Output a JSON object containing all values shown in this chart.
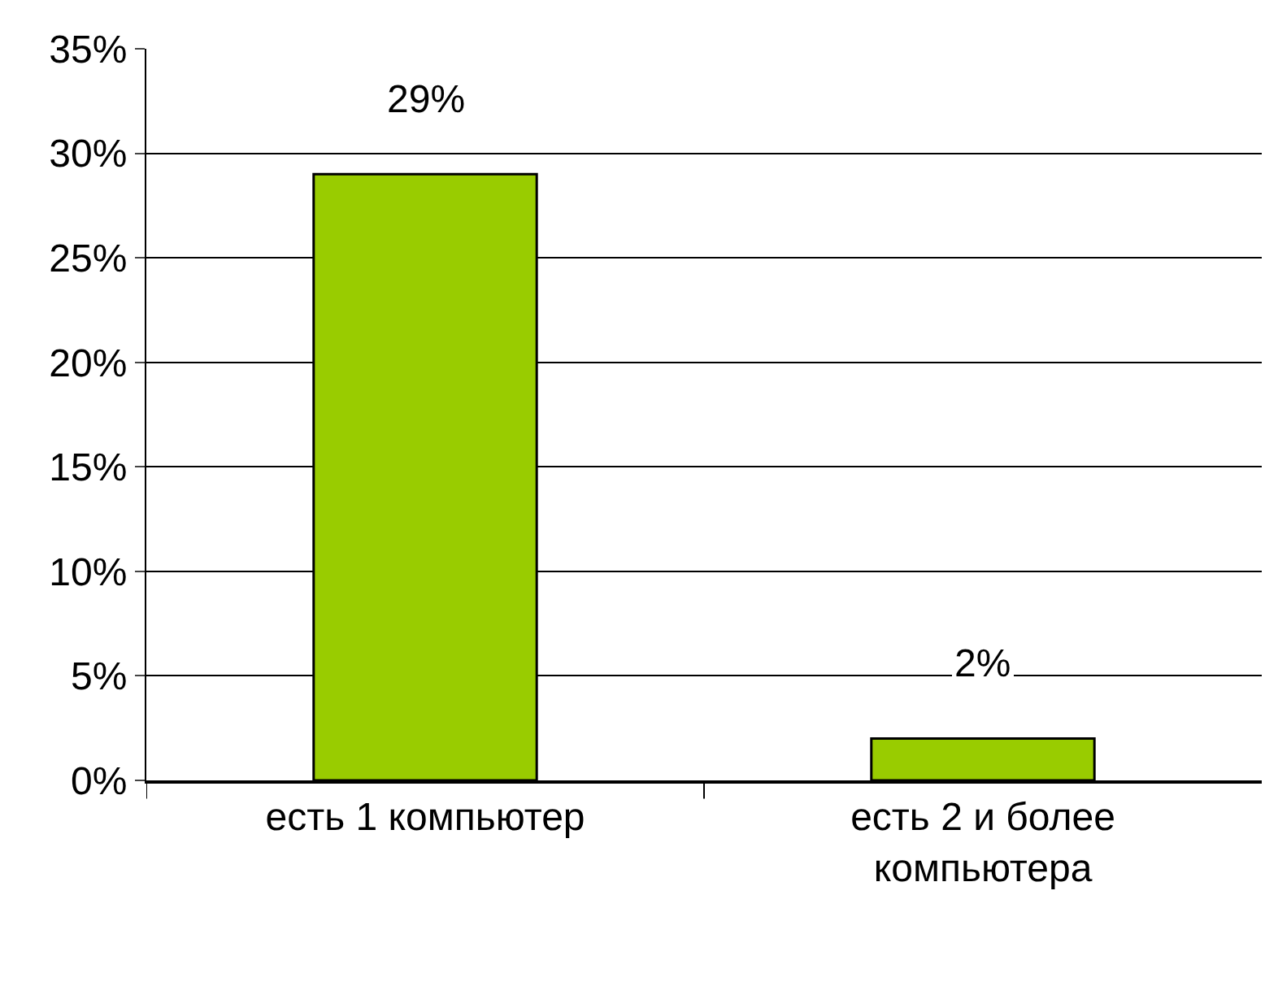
{
  "chart_data": {
    "type": "bar",
    "categories": [
      "есть 1 компьютер",
      "есть 2 и более компьютера"
    ],
    "values": [
      29,
      2
    ],
    "color": "#99cc00",
    "value_labels": [
      "29%",
      "2%"
    ],
    "ylim": [
      0,
      35
    ],
    "yticks": [
      {
        "value": 0,
        "label": "0%"
      },
      {
        "value": 5,
        "label": "5%"
      },
      {
        "value": 10,
        "label": "10%"
      },
      {
        "value": 15,
        "label": "15%"
      },
      {
        "value": 20,
        "label": "20%"
      },
      {
        "value": 25,
        "label": "25%"
      },
      {
        "value": 30,
        "label": "30%"
      },
      {
        "value": 35,
        "label": "35%"
      }
    ],
    "grid": "y",
    "legend": false
  }
}
